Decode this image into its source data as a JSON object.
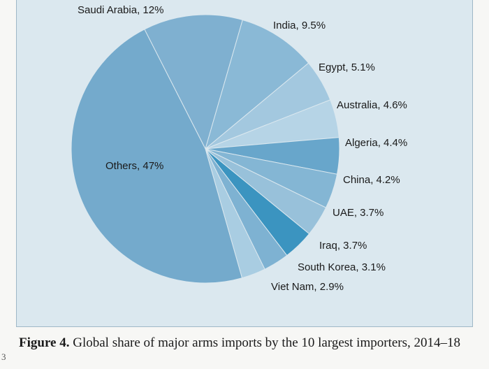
{
  "chart_data": {
    "type": "pie",
    "title": "",
    "slices": [
      {
        "label": "Saudi Arabia, 12%",
        "name": "Saudi Arabia",
        "value": 12,
        "color": "#7fb0d0"
      },
      {
        "label": "India, 9.5%",
        "name": "India",
        "value": 9.5,
        "color": "#8ab9d6"
      },
      {
        "label": "Egypt, 5.1%",
        "name": "Egypt",
        "value": 5.1,
        "color": "#a3c8df"
      },
      {
        "label": "Australia, 4.6%",
        "name": "Australia",
        "value": 4.6,
        "color": "#b6d4e6"
      },
      {
        "label": "Algeria, 4.4%",
        "name": "Algeria",
        "value": 4.4,
        "color": "#68a6cb"
      },
      {
        "label": "China, 4.2%",
        "name": "China",
        "value": 4.2,
        "color": "#84b6d4"
      },
      {
        "label": "UAE, 3.7%",
        "name": "UAE",
        "value": 3.7,
        "color": "#98c1da"
      },
      {
        "label": "Iraq, 3.7%",
        "name": "Iraq",
        "value": 3.7,
        "color": "#3b94c0"
      },
      {
        "label": "South Korea, 3.1%",
        "name": "South Korea",
        "value": 3.1,
        "color": "#7eb2d2"
      },
      {
        "label": "Viet Nam, 2.9%",
        "name": "Viet Nam",
        "value": 2.9,
        "color": "#a9cde2"
      },
      {
        "label": "Others, 47%",
        "name": "Others",
        "value": 47,
        "color": "#74aacc"
      }
    ]
  },
  "caption": {
    "figure_label": "Figure 4.",
    "text": " Global share of major arms imports by the 10 largest importers, 2014–18"
  },
  "margin_mark": "3"
}
